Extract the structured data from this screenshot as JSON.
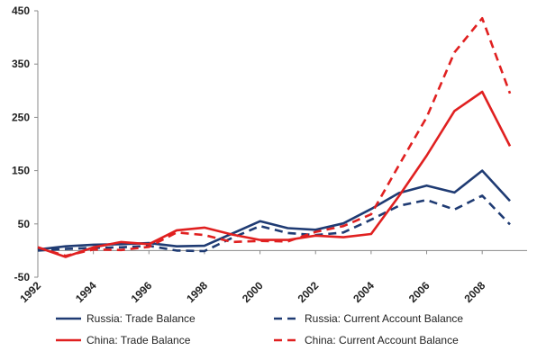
{
  "chart_data": {
    "type": "line",
    "title": "",
    "xlabel": "",
    "ylabel": "",
    "x": [
      1992,
      1993,
      1994,
      1995,
      1996,
      1997,
      1998,
      1999,
      2000,
      2001,
      2002,
      2003,
      2004,
      2005,
      2006,
      2007,
      2008,
      2009
    ],
    "xticks": [
      "1992",
      "1994",
      "1996",
      "1998",
      "2000",
      "2002",
      "2004",
      "2006",
      "2008"
    ],
    "yticks": [
      "450",
      "350",
      "250",
      "150",
      "50",
      "-50"
    ],
    "ylim": [
      -50,
      450
    ],
    "grid": false,
    "legend_position": "bottom",
    "series": [
      {
        "name": "Russia: Trade Balance",
        "color": "#1f3b73",
        "style": "solid",
        "values": [
          2,
          8,
          11,
          12,
          14,
          8,
          9,
          32,
          55,
          42,
          39,
          51,
          78,
          108,
          122,
          109,
          150,
          93
        ]
      },
      {
        "name": "Russia: Current Account Balance",
        "color": "#1f3b73",
        "style": "dashed",
        "values": [
          0,
          3,
          5,
          6,
          9,
          0,
          -1,
          24,
          46,
          33,
          29,
          34,
          58,
          84,
          95,
          77,
          103,
          49
        ]
      },
      {
        "name": "China: Trade Balance",
        "color": "#e02020",
        "style": "solid",
        "values": [
          6,
          -12,
          6,
          16,
          12,
          38,
          43,
          30,
          20,
          20,
          28,
          25,
          31,
          102,
          178,
          262,
          298,
          196
        ]
      },
      {
        "name": "China: Current Account Balance",
        "color": "#e02020",
        "style": "dashed",
        "values": [
          6,
          -10,
          2,
          1,
          7,
          34,
          29,
          16,
          18,
          17,
          35,
          46,
          68,
          160,
          250,
          372,
          436,
          295
        ]
      }
    ]
  }
}
